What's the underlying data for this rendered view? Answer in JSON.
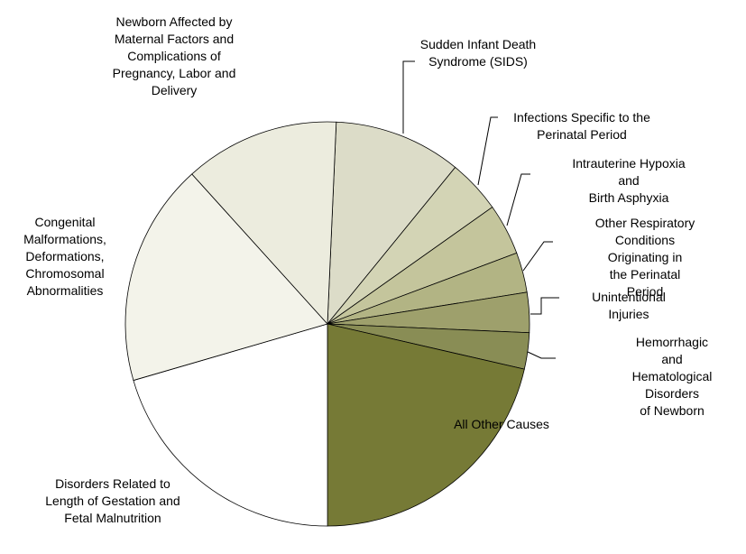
{
  "chart_data": {
    "type": "pie",
    "categories": [
      "Sudden Infant Death\nSyndrome (SIDS)",
      "Infections Specific to the\nPerinatal Period",
      "Intrauterine Hypoxia and\nBirth Asphyxia",
      "Other Respiratory\nConditions Originating in\nthe Perinatal Period",
      "Unintentional Injuries",
      "Hemorrhagic and\nHematological Disorders\nof Newborn",
      "All Other Causes",
      "Disorders Related to\nLength of Gestation and\nFetal Malnutrition",
      "Congenital\nMalformations,\nDeformations,\nChromosomal\nAbnormalities",
      "Newborn Affected by\nMaternal Factors and\nComplications of\nPregnancy, Labor and\nDelivery"
    ],
    "values": [
      10.2,
      4.3,
      4.1,
      3.2,
      3.2,
      2.9,
      21.4,
      20.5,
      17.8,
      12.4
    ],
    "colors": [
      "#dcdcc8",
      "#d3d4b5",
      "#c4c59c",
      "#b2b484",
      "#9ea06c",
      "#898d55",
      "#767a36",
      "#ffffff",
      "#f3f3ea",
      "#ececde"
    ]
  }
}
